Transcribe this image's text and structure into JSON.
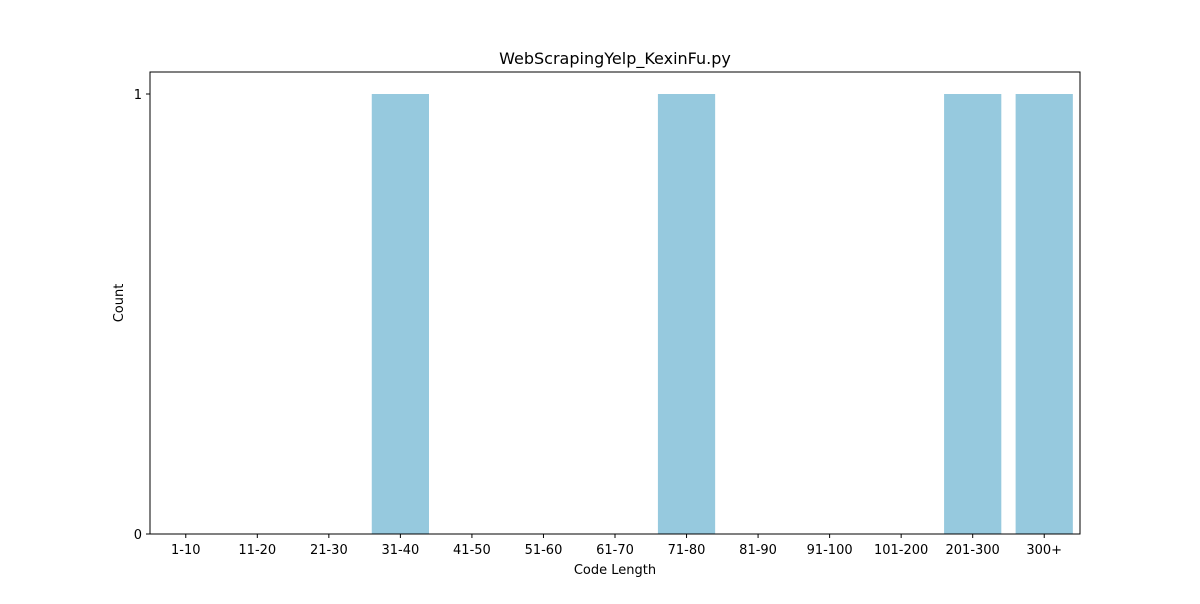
{
  "chart_data": {
    "type": "bar",
    "title": "WebScrapingYelp_KexinFu.py",
    "xlabel": "Code Length",
    "ylabel": "Count",
    "categories": [
      "1-10",
      "11-20",
      "21-30",
      "31-40",
      "41-50",
      "51-60",
      "61-70",
      "71-80",
      "81-90",
      "91-100",
      "101-200",
      "201-300",
      "300+"
    ],
    "values": [
      0,
      0,
      0,
      1,
      0,
      0,
      0,
      1,
      0,
      0,
      0,
      1,
      1
    ],
    "ylim": [
      0,
      1.05
    ],
    "yticks": [
      0,
      1
    ],
    "grid": false,
    "legend": "none",
    "bar_color": "#96c9de"
  }
}
